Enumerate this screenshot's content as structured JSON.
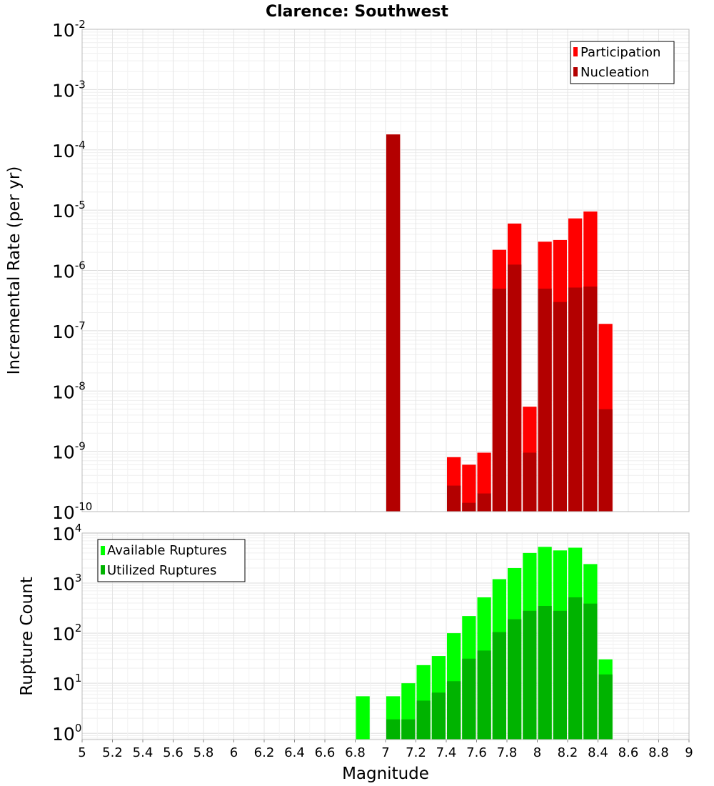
{
  "chart_data": [
    {
      "type": "bar",
      "title": "Clarence: Southwest",
      "xlabel": "Magnitude",
      "ylabel": "Incremental Rate (per yr)",
      "xlim": [
        5,
        9
      ],
      "ylim": [
        1e-10,
        0.01
      ],
      "y_scale": "log",
      "y_tick_exponents": [
        "-10",
        "-9",
        "-8",
        "-7",
        "-6",
        "-5",
        "-4",
        "-3",
        "-2"
      ],
      "grid": true,
      "legend_position": "top-right",
      "bin_width": 0.1,
      "x": [
        7.05,
        7.45,
        7.55,
        7.65,
        7.75,
        7.85,
        7.95,
        8.05,
        8.15,
        8.25,
        8.35,
        8.45
      ],
      "series": [
        {
          "name": "Participation",
          "color": "#ff0000",
          "values": [
            0.00018,
            8e-10,
            6e-10,
            9.5e-10,
            2.2e-06,
            6e-06,
            5.5e-09,
            3e-06,
            3.2e-06,
            7.3e-06,
            9.5e-06,
            1.3e-07
          ]
        },
        {
          "name": "Nucleation",
          "color": "#b30000",
          "values": [
            0.00018,
            2.7e-10,
            1.4e-10,
            2e-10,
            5e-07,
            1.25e-06,
            9.5e-10,
            5e-07,
            3e-07,
            5.2e-07,
            5.4e-07,
            5e-09
          ]
        }
      ]
    },
    {
      "type": "bar",
      "xlabel": "Magnitude",
      "ylabel": "Rupture Count",
      "xlim": [
        5,
        9
      ],
      "ylim": [
        0.75,
        10000
      ],
      "y_scale": "log",
      "y_tick_exponents": [
        "0",
        "1",
        "2",
        "3",
        "4"
      ],
      "x_ticks": [
        "5",
        "5.2",
        "5.4",
        "5.6",
        "5.8",
        "6",
        "6.2",
        "6.4",
        "6.6",
        "6.8",
        "7",
        "7.2",
        "7.4",
        "7.6",
        "7.8",
        "8",
        "8.2",
        "8.4",
        "8.6",
        "8.8",
        "9"
      ],
      "grid": true,
      "legend_position": "top-left",
      "bin_width": 0.1,
      "x": [
        6.85,
        7.05,
        7.15,
        7.25,
        7.35,
        7.45,
        7.55,
        7.65,
        7.75,
        7.85,
        7.95,
        8.05,
        8.15,
        8.25,
        8.35,
        8.45
      ],
      "series": [
        {
          "name": "Available Ruptures",
          "color": "#00ff00",
          "values": [
            5.5,
            5.5,
            10,
            23,
            35,
            100,
            220,
            520,
            1200,
            2000,
            4000,
            5300,
            4500,
            5100,
            2400,
            30
          ]
        },
        {
          "name": "Utilized Ruptures",
          "color": "#00b300",
          "values": [
            0,
            1.9,
            1.9,
            4.5,
            6.5,
            11,
            31,
            45,
            105,
            190,
            280,
            350,
            280,
            520,
            390,
            15
          ]
        }
      ]
    }
  ]
}
